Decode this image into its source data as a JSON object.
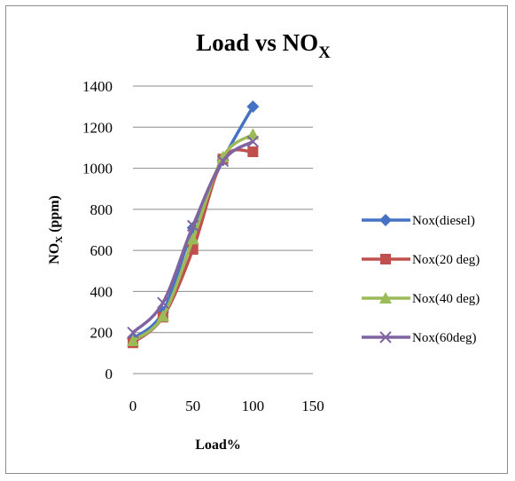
{
  "chart_data": {
    "type": "line",
    "title": {
      "main": "Load vs NO",
      "sub": "X"
    },
    "xlabel": "Load%",
    "ylabel": {
      "main": "NO",
      "sub": "X",
      "rest": " (ppm)"
    },
    "xlim": [
      0,
      150
    ],
    "ylim": [
      0,
      1400
    ],
    "xticks": [
      0,
      50,
      100,
      150
    ],
    "yticks": [
      0,
      200,
      400,
      600,
      800,
      1000,
      1200,
      1400
    ],
    "grid": "horizontal",
    "legend_position": "right",
    "x": [
      0,
      25,
      50,
      75,
      100
    ],
    "series": [
      {
        "name": "Nox(diesel)",
        "marker": "diamond",
        "color": "#4472c4",
        "values": [
          170,
          300,
          710,
          1040,
          1300
        ]
      },
      {
        "name": "Nox(20 deg)",
        "marker": "square",
        "color": "#c0504d",
        "values": [
          150,
          275,
          605,
          1045,
          1080
        ]
      },
      {
        "name": "Nox(40 deg)",
        "marker": "triangle",
        "color": "#9bbb59",
        "values": [
          160,
          280,
          655,
          1055,
          1165
        ]
      },
      {
        "name": "Nox(60deg)",
        "marker": "x",
        "color": "#8064a2",
        "values": [
          200,
          345,
          720,
          1035,
          1130
        ]
      }
    ]
  }
}
